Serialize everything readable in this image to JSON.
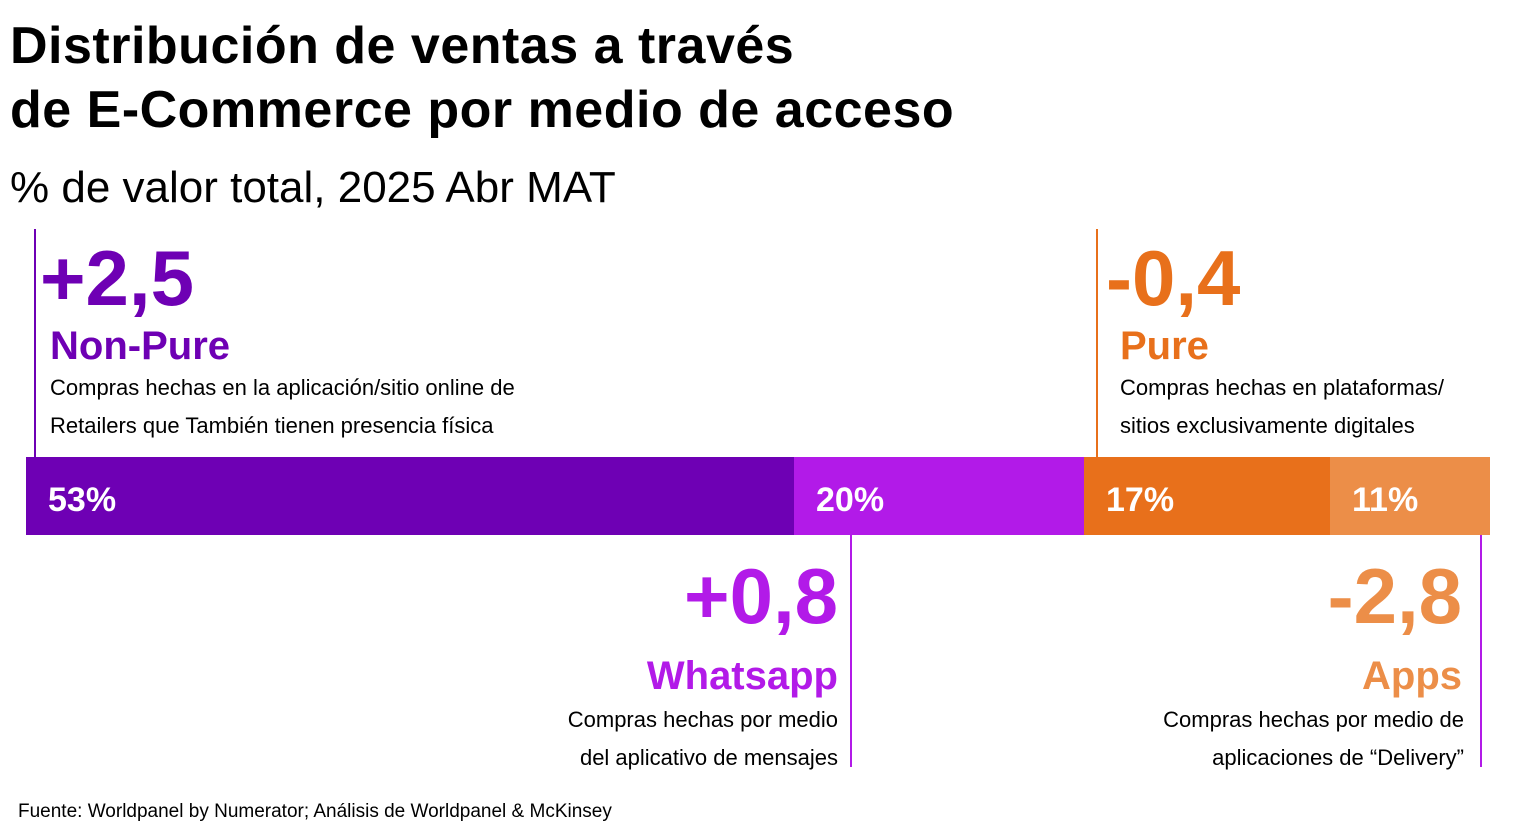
{
  "title": {
    "line1": "Distribución de ventas a través",
    "line2": "de E-Commerce por medio de acceso"
  },
  "subtitle": "% de valor total, 2025 Abr MAT",
  "colors": {
    "non_pure": "#6E00B4",
    "whatsapp": "#B21AE8",
    "pure": "#E8701B",
    "apps": "#EC8E48"
  },
  "chart_data": {
    "type": "bar",
    "orientation": "horizontal-stacked-100",
    "title": "Distribución de ventas a través de E-Commerce por medio de acceso",
    "subtitle": "% de valor total, 2025 Abr MAT",
    "unit": "%",
    "series": [
      {
        "key": "non_pure",
        "name": "Non-Pure",
        "value": 53,
        "value_label": "53%",
        "change": "+2,5",
        "description": [
          "Compras hechas en la aplicación/sitio online de",
          "Retailers que También tienen presencia física"
        ],
        "color": "#6E00B4"
      },
      {
        "key": "whatsapp",
        "name": "Whatsapp",
        "value": 20,
        "value_label": "20%",
        "change": "+0,8",
        "description": [
          "Compras hechas por medio",
          "del aplicativo de mensajes"
        ],
        "color": "#B21AE8"
      },
      {
        "key": "pure",
        "name": "Pure",
        "value": 17,
        "value_label": "17%",
        "change": "-0,4",
        "description": [
          "Compras hechas en plataformas/",
          "sitios exclusivamente digitales"
        ],
        "color": "#E8701B"
      },
      {
        "key": "apps",
        "name": "Apps",
        "value": 11,
        "value_label": "11%",
        "change": "-2,8",
        "description": [
          "Compras hechas por medio de",
          "aplicaciones de “Delivery”"
        ],
        "color": "#EC8E48"
      }
    ]
  },
  "source": "Fuente: Worldpanel by Numerator; Análisis de Worldpanel & McKinsey"
}
